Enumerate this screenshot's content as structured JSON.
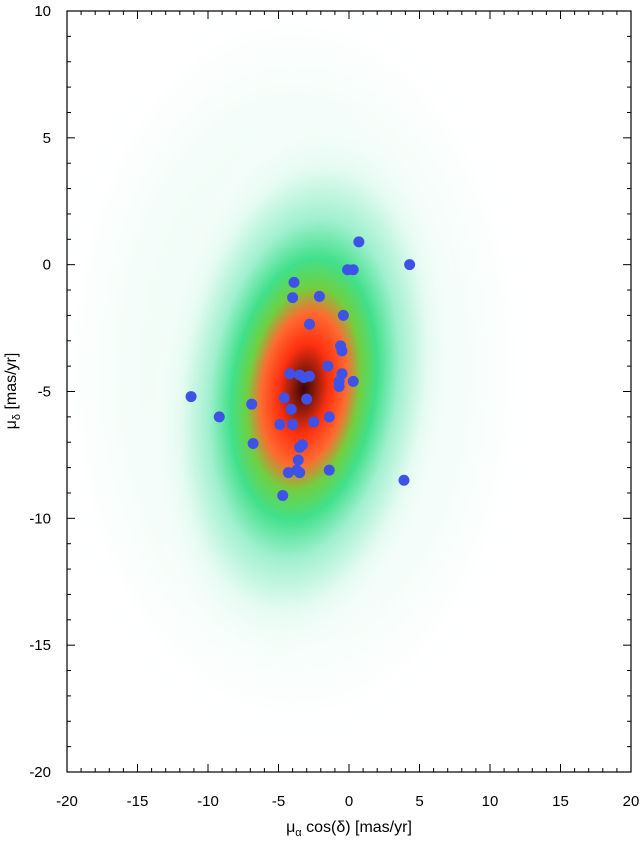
{
  "chart_data": {
    "type": "scatter",
    "xlabel": "μα cos(δ) [mas/yr]",
    "ylabel": "μδ [mas/yr]",
    "xlabel_parts": {
      "sym": "μ",
      "sub": "α",
      "rest": " cos(δ) [mas/yr]"
    },
    "ylabel_parts": {
      "sym": "μ",
      "sub": "δ",
      "rest": " [mas/yr]"
    },
    "xlim": [
      -20,
      20
    ],
    "ylim": [
      -20,
      10
    ],
    "x_ticks": [
      -20,
      -15,
      -10,
      -5,
      0,
      5,
      10,
      15,
      20
    ],
    "y_ticks": [
      -20,
      -15,
      -10,
      -5,
      0,
      5,
      10
    ],
    "x_tick_labels": [
      "-20",
      "-15",
      "-10",
      "-5",
      "0",
      "5",
      "10",
      "15",
      "20"
    ],
    "y_tick_labels": [
      "-20",
      "-15",
      "-10",
      "-5",
      "0",
      "5",
      "10"
    ],
    "grid": false,
    "background_density": {
      "description_type": "2d-density-heatmap",
      "center": [
        -3.2,
        -4.9
      ],
      "colormap": [
        "#ffffff",
        "#e6fbf3",
        "#9af0c8",
        "#3cdc78",
        "#6bd23c",
        "#ff7030",
        "#ff3a12",
        "#6b1208"
      ]
    },
    "marker_color": "#3e52e8",
    "points": [
      {
        "x": 0.7,
        "y": 0.9
      },
      {
        "x": 4.3,
        "y": 0.0
      },
      {
        "x": -0.1,
        "y": -0.2
      },
      {
        "x": 0.3,
        "y": -0.2
      },
      {
        "x": -3.9,
        "y": -0.7
      },
      {
        "x": -4.0,
        "y": -1.3
      },
      {
        "x": -2.1,
        "y": -1.25
      },
      {
        "x": -0.4,
        "y": -2.0
      },
      {
        "x": -2.8,
        "y": -2.35
      },
      {
        "x": -0.6,
        "y": -3.2
      },
      {
        "x": -0.5,
        "y": -3.4
      },
      {
        "x": -1.5,
        "y": -4.0
      },
      {
        "x": -4.2,
        "y": -4.3
      },
      {
        "x": -3.5,
        "y": -4.35
      },
      {
        "x": -3.2,
        "y": -4.45
      },
      {
        "x": -2.8,
        "y": -4.4
      },
      {
        "x": -0.5,
        "y": -4.3
      },
      {
        "x": -0.7,
        "y": -4.6
      },
      {
        "x": -0.7,
        "y": -4.8
      },
      {
        "x": 0.3,
        "y": -4.6
      },
      {
        "x": -11.2,
        "y": -5.2
      },
      {
        "x": -9.2,
        "y": -6.0
      },
      {
        "x": -6.9,
        "y": -5.5
      },
      {
        "x": -4.6,
        "y": -5.25
      },
      {
        "x": -4.1,
        "y": -5.7
      },
      {
        "x": -3.0,
        "y": -5.3
      },
      {
        "x": -4.9,
        "y": -6.3
      },
      {
        "x": -4.0,
        "y": -6.3
      },
      {
        "x": -2.5,
        "y": -6.2
      },
      {
        "x": -1.4,
        "y": -6.0
      },
      {
        "x": -6.8,
        "y": -7.05
      },
      {
        "x": -3.3,
        "y": -7.1
      },
      {
        "x": -3.5,
        "y": -7.2
      },
      {
        "x": -3.6,
        "y": -7.7
      },
      {
        "x": -4.3,
        "y": -8.2
      },
      {
        "x": -3.7,
        "y": -8.1
      },
      {
        "x": -3.5,
        "y": -8.2
      },
      {
        "x": -1.4,
        "y": -8.1
      },
      {
        "x": 3.9,
        "y": -8.5
      },
      {
        "x": -4.7,
        "y": -9.1
      }
    ]
  }
}
